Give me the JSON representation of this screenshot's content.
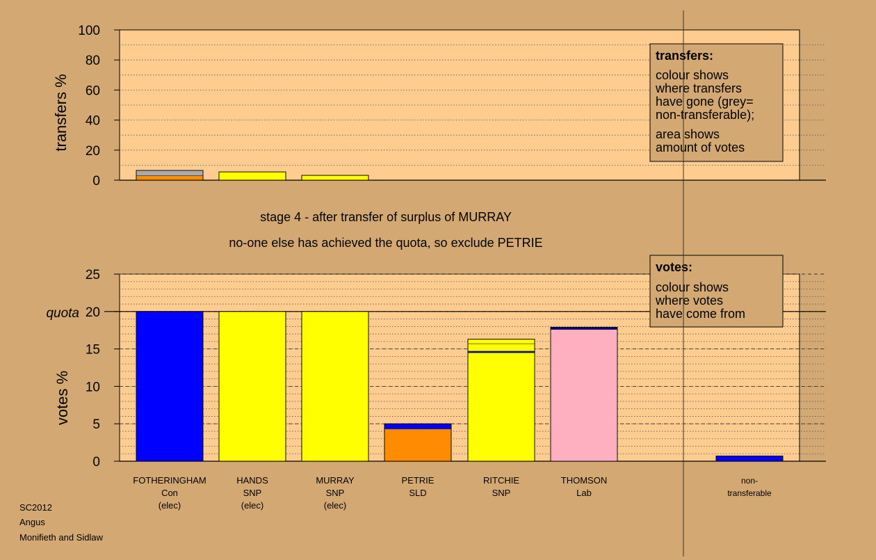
{
  "colors": {
    "background": "#d4a872",
    "plot_background": "#ffcc8f",
    "Con": "#0000ff",
    "SNP": "#ffff00",
    "SLD": "#ff8c00",
    "Lab": "#ffb0c0",
    "nontransferable": "#aaaaaa",
    "navy": "#000080"
  },
  "chart_data": [
    {
      "type": "bar",
      "ylabel": "transfers %",
      "ylim": [
        0,
        100
      ],
      "yticks": [
        "0",
        "20",
        "40",
        "60",
        "80",
        "100"
      ],
      "grid": true,
      "bars": [
        {
          "candidate": "FOTHERINGHAM",
          "segments": [
            {
              "from": "SLD",
              "value": 3
            },
            {
              "from": "nontransferable",
              "value": 3.5
            }
          ]
        },
        {
          "candidate": "HANDS",
          "segments": [
            {
              "from": "SNP",
              "value": 5.5
            }
          ]
        },
        {
          "candidate": "MURRAY",
          "segments": [
            {
              "from": "SNP",
              "value": 3.2
            }
          ]
        }
      ],
      "legend": {
        "title": "transfers:",
        "lines1": [
          "colour shows",
          "where transfers",
          "have gone (grey=",
          "non-transferable);"
        ],
        "lines2": [
          "area shows",
          "amount of votes"
        ]
      }
    },
    {
      "type": "bar",
      "ylabel": "votes %",
      "ylim": [
        0,
        25
      ],
      "yticks": [
        "0",
        "5",
        "10",
        "15",
        "20",
        "25"
      ],
      "quota": {
        "label": "quota",
        "value": 20
      },
      "grid": true,
      "categories": [
        {
          "lines": [
            "FOTHERINGHAM",
            "Con",
            "(elec)"
          ]
        },
        {
          "lines": [
            "HANDS",
            "SNP",
            "(elec)"
          ]
        },
        {
          "lines": [
            "MURRAY",
            "SNP",
            "(elec)"
          ]
        },
        {
          "lines": [
            "PETRIE",
            "SLD"
          ]
        },
        {
          "lines": [
            "RITCHIE",
            "SNP"
          ]
        },
        {
          "lines": [
            "THOMSON",
            "Lab"
          ]
        },
        {
          "lines": []
        },
        {
          "lines": [
            "non-",
            "transferable"
          ]
        }
      ],
      "bars": [
        {
          "candidate": "FOTHERINGHAM",
          "segments": [
            {
              "from": "Con",
              "value": 20
            }
          ]
        },
        {
          "candidate": "HANDS",
          "segments": [
            {
              "from": "SNP",
              "value": 20
            }
          ]
        },
        {
          "candidate": "MURRAY",
          "segments": [
            {
              "from": "SNP",
              "value": 20
            }
          ]
        },
        {
          "candidate": "PETRIE",
          "segments": [
            {
              "from": "SLD",
              "value": 4.3
            },
            {
              "from": "Con",
              "value": 0.7
            }
          ]
        },
        {
          "candidate": "RITCHIE",
          "segments": [
            {
              "from": "SNP",
              "value": 14.5
            },
            {
              "from": "navy",
              "value": 0.2
            },
            {
              "from": "SNP",
              "value": 1.0
            },
            {
              "from": "SNP",
              "value": 0.6
            }
          ]
        },
        {
          "candidate": "THOMSON",
          "segments": [
            {
              "from": "Lab",
              "value": 17.6
            },
            {
              "from": "navy",
              "value": 0.3
            }
          ]
        },
        {
          "candidate": "",
          "segments": []
        },
        {
          "candidate": "non-transferable",
          "segments": [
            {
              "from": "Con",
              "value": 0.7
            }
          ]
        }
      ],
      "legend": {
        "title": "votes:",
        "lines1": [
          "colour shows",
          "where votes",
          "have come from"
        ]
      }
    }
  ],
  "stage_text": {
    "line1": "stage 4 - after transfer of surplus of MURRAY",
    "line2": "no-one else has achieved the quota, so exclude PETRIE"
  },
  "footer": {
    "line1": "SC2012",
    "line2": "Angus",
    "line3": "Monifieth and Sidlaw"
  }
}
